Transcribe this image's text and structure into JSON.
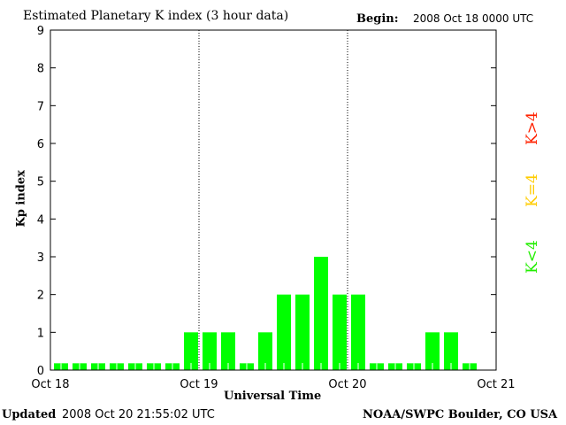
{
  "chart_data": {
    "type": "bar",
    "title": "Estimated Planetary K index (3 hour data)",
    "begin_label": "Begin:",
    "begin_value": "2008 Oct 18 0000 UTC",
    "xlabel": "Universal Time",
    "ylabel": "Kp index",
    "ylim": [
      0,
      9
    ],
    "yticks": [
      "0",
      "1",
      "2",
      "3",
      "4",
      "5",
      "6",
      "7",
      "8",
      "9"
    ],
    "xticks": [
      "Oct 18",
      "Oct 19",
      "Oct 20",
      "Oct 21"
    ],
    "bar_interval_hours": 3,
    "values": [
      0,
      0,
      0,
      0,
      0,
      0,
      0,
      1,
      1,
      1,
      0,
      1,
      2,
      2,
      3,
      2,
      2,
      0,
      0,
      0,
      1,
      1,
      0
    ],
    "colors": {
      "low": "#00ff00",
      "mid": "#ffcc00",
      "high": "#ff2200"
    },
    "legend": {
      "high": "K>4",
      "mid": "K=4",
      "low": "K<4"
    }
  },
  "footer": {
    "updated_label": "Updated",
    "updated_value": "2008 Oct 20 21:55:02 UTC",
    "source": "NOAA/SWPC Boulder, CO USA"
  }
}
